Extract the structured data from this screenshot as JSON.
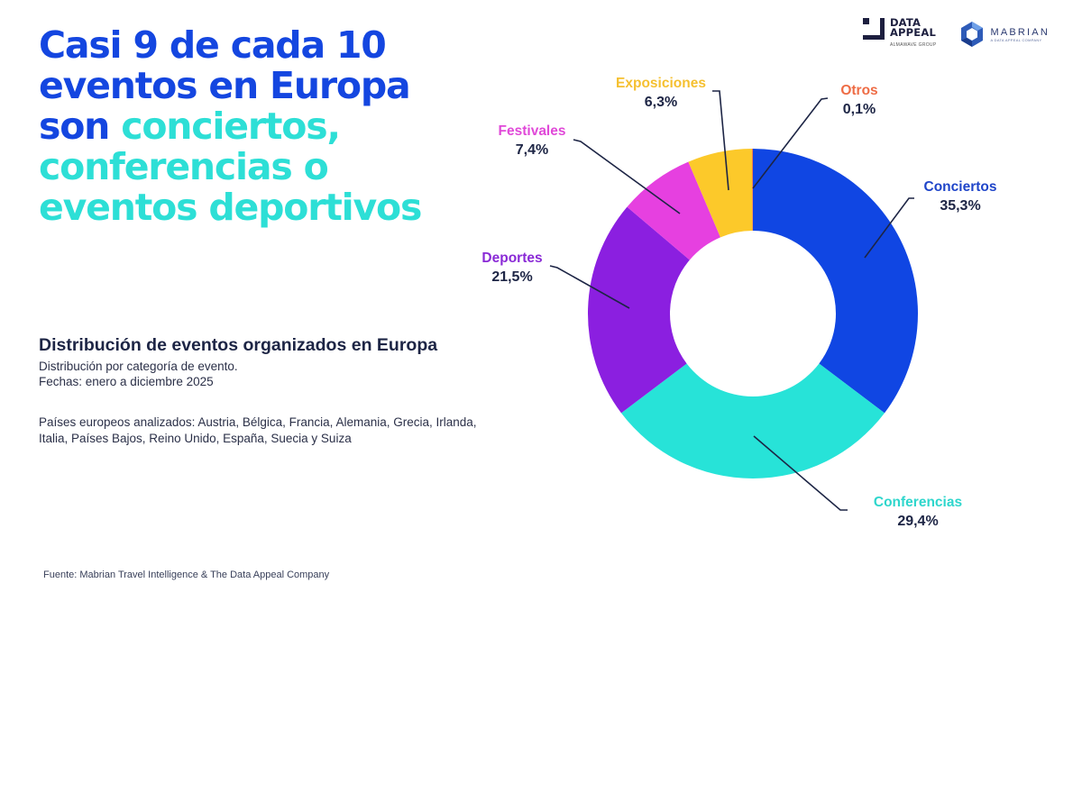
{
  "headline": {
    "line1": "Casi 9 de cada 10",
    "line2": "eventos en Europa",
    "line3_a": "son ",
    "line3_b": "conciertos,",
    "line4": "conferencias o",
    "line5": "eventos deportivos"
  },
  "logos": {
    "data_appeal": {
      "line1": "DATA",
      "line2": "APPEAL",
      "sub": "ALMAWAVE GROUP"
    },
    "mabrian": {
      "name": "MABRIAN",
      "sub": "A DATA APPEAL COMPANY"
    }
  },
  "colors": {
    "headline_blue": "#1446e0",
    "headline_teal": "#2ddfd6",
    "text_dark": "#1d2545"
  },
  "info": {
    "chart_title": "Distribución de eventos organizados en Europa",
    "subtitle_line1": "Distribución por categoría de evento.",
    "subtitle_line2": "Fechas: enero a diciembre 2025",
    "countries": "Países europeos analizados: Austria, Bélgica, Francia, Alemania, Grecia, Irlanda, Italia, Países Bajos, Reino Unido, España, Suecia y Suiza",
    "source": "Fuente: Mabrian Travel Intelligence & The Data Appeal Company"
  },
  "chart_data": {
    "type": "pie",
    "variant": "donut",
    "title": "Distribución de eventos organizados en Europa",
    "start": "top",
    "direction": "clockwise",
    "unit": "%",
    "slices": [
      {
        "label": "Conciertos",
        "value": 35.3,
        "display": "35,3%",
        "color": "#1046e3",
        "label_color": "#1f45c9"
      },
      {
        "label": "Conferencias",
        "value": 29.4,
        "display": "29,4%",
        "color": "#27e3d8",
        "label_color": "#2ed6cc"
      },
      {
        "label": "Deportes",
        "value": 21.5,
        "display": "21,5%",
        "color": "#8b1fe0",
        "label_color": "#8a2ad6"
      },
      {
        "label": "Festivales",
        "value": 7.4,
        "display": "7,4%",
        "color": "#e640e0",
        "label_color": "#e049d8"
      },
      {
        "label": "Exposiciones",
        "value": 6.3,
        "display": "6,3%",
        "color": "#fcc92a",
        "label_color": "#f5c030"
      },
      {
        "label": "Otros",
        "value": 0.1,
        "display": "0,1%",
        "color": "#f07a4a",
        "label_color": "#ee6c45"
      }
    ]
  }
}
